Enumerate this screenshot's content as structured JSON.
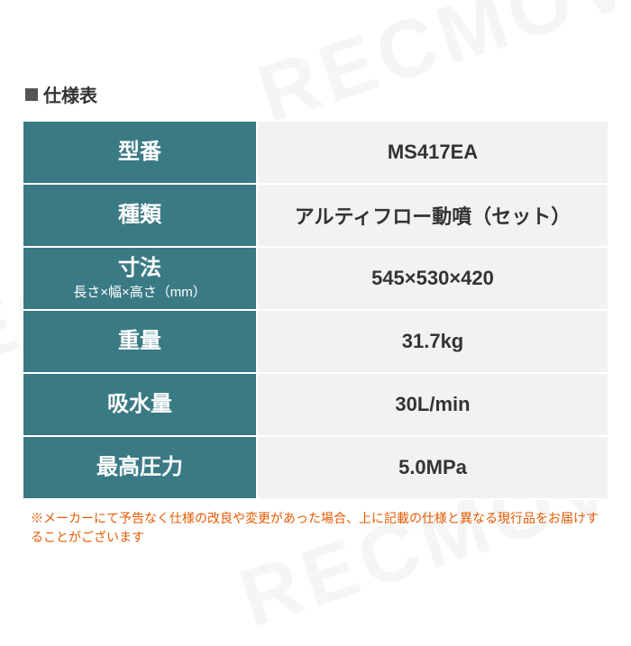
{
  "title": "仕様表",
  "watermark": "RECMOV",
  "colors": {
    "label_bg": "#3a7a85",
    "label_text": "#ffffff",
    "value_bg": "#f2f2f2",
    "value_text": "#333333",
    "footnote_text": "#e55a00",
    "title_text": "#333333",
    "border": "#ffffff"
  },
  "rows": [
    {
      "label": "型番",
      "sub": "",
      "value": "MS417EA"
    },
    {
      "label": "種類",
      "sub": "",
      "value": "アルティフロー動噴（セット）"
    },
    {
      "label": "寸法",
      "sub": "長さ×幅×高さ（mm）",
      "value": "545×530×420"
    },
    {
      "label": "重量",
      "sub": "",
      "value": "31.7kg"
    },
    {
      "label": "吸水量",
      "sub": "",
      "value": "30L/min"
    },
    {
      "label": "最高圧力",
      "sub": "",
      "value": "5.0MPa"
    }
  ],
  "footnote": "※メーカーにて予告なく仕様の改良や変更があった場合、上に記載の仕様と異なる現行品をお届けすることがございます"
}
